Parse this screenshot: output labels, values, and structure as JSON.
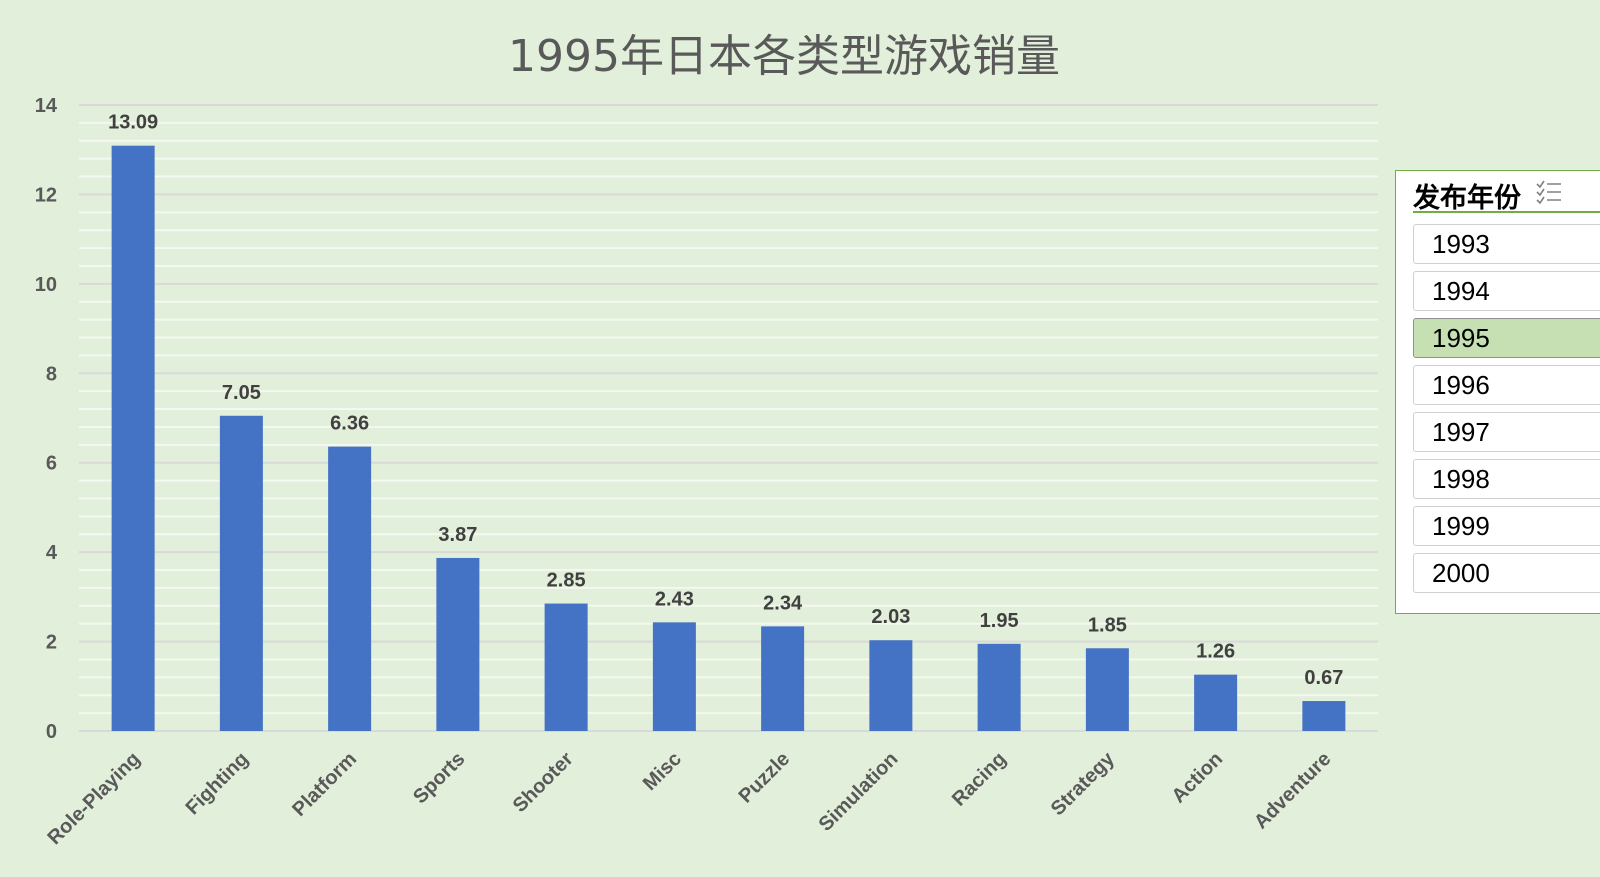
{
  "chart_data": {
    "type": "bar",
    "title": "1995年日本各类型游戏销量",
    "categories": [
      "Role-Playing",
      "Fighting",
      "Platform",
      "Sports",
      "Shooter",
      "Misc",
      "Puzzle",
      "Simulation",
      "Racing",
      "Strategy",
      "Action",
      "Adventure"
    ],
    "values": [
      13.09,
      7.05,
      6.36,
      3.87,
      2.85,
      2.43,
      2.34,
      2.03,
      1.95,
      1.85,
      1.26,
      0.67
    ],
    "value_labels": [
      "13.09",
      "7.05",
      "6.36",
      "3.87",
      "2.85",
      "2.43",
      "2.34",
      "2.03",
      "1.95",
      "1.85",
      "1.26",
      "0.67"
    ],
    "xlabel": "",
    "ylabel": "",
    "ylim": [
      0,
      14
    ],
    "yticks": [
      "0",
      "2",
      "4",
      "6",
      "8",
      "10",
      "12",
      "14"
    ],
    "grid": true,
    "bar_color": "#4472c4"
  },
  "slicer": {
    "title": "发布年份",
    "items": [
      {
        "label": "1993",
        "selected": false
      },
      {
        "label": "1994",
        "selected": false
      },
      {
        "label": "1995",
        "selected": true
      },
      {
        "label": "1996",
        "selected": false
      },
      {
        "label": "1997",
        "selected": false
      },
      {
        "label": "1998",
        "selected": false
      },
      {
        "label": "1999",
        "selected": false
      },
      {
        "label": "2000",
        "selected": false
      }
    ]
  }
}
